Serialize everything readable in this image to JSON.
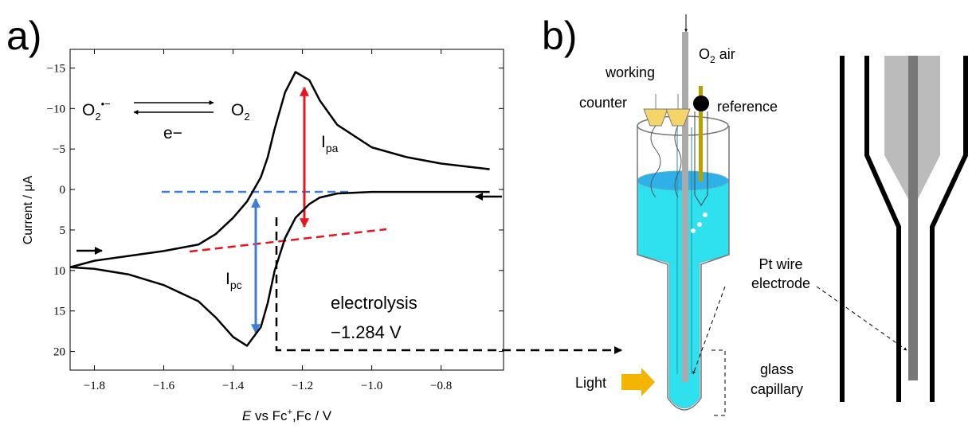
{
  "chart_data": {
    "type": "line",
    "y_title": "Current / μA",
    "x_title": [
      "E",
      " vs Fc",
      "+",
      ",Fc / V"
    ],
    "x": [
      -1.87,
      -1.8,
      -1.7,
      -1.6,
      -1.5,
      -1.45,
      -1.4,
      -1.36,
      -1.32,
      -1.3,
      -1.28,
      -1.25,
      -1.22,
      -1.18,
      -1.15,
      -1.1,
      -1.0,
      -0.9,
      -0.8,
      -0.66
    ],
    "series": [
      {
        "color": "#000000",
        "values": [
          9.6,
          9.8,
          10.5,
          11.8,
          13.8,
          15.8,
          18.2,
          19.3,
          17,
          14,
          10,
          6,
          3.5,
          1.8,
          1,
          0.5,
          0.3,
          0.3,
          0.3,
          0.3
        ]
      },
      {
        "color": "#000000",
        "values": [
          9.6,
          8.8,
          8.2,
          7.6,
          6.8,
          5.5,
          3.5,
          1.5,
          -1.5,
          -4,
          -7.5,
          -12,
          -14.5,
          -13.5,
          -11,
          -8,
          -5.2,
          -4,
          -3.2,
          -2.5
        ]
      }
    ],
    "xlim": [
      -1.87,
      -0.62
    ],
    "ylim": [
      -17.3,
      22.3
    ],
    "y_inverted": true,
    "xticks": [
      {
        "value": -1.8,
        "label": "−1.8"
      },
      {
        "value": -1.6,
        "label": "−1.6"
      },
      {
        "value": -1.4,
        "label": "−1.4"
      },
      {
        "value": -1.2,
        "label": "−1.2"
      },
      {
        "value": -1.0,
        "label": "−1.0"
      },
      {
        "value": -0.8,
        "label": "−0.8"
      }
    ],
    "yticks": [
      {
        "value": -15,
        "label": "−15"
      },
      {
        "value": -10,
        "label": "−10"
      },
      {
        "value": -5,
        "label": "−5"
      },
      0,
      5,
      10,
      15,
      20
    ],
    "annotations": {
      "reaction": {
        "left": [
          "O",
          "2",
          "•−"
        ],
        "below": "e−",
        "right": [
          "O",
          "2"
        ]
      },
      "ipa": [
        "I",
        "pa"
      ],
      "ipc": [
        "I",
        "pc"
      ],
      "electrolysis": "electrolysis",
      "potential": "−1.284 V"
    }
  },
  "panel_labels": [
    "a)",
    "b)"
  ],
  "diagram": {
    "gas": [
      "O",
      "2",
      " air"
    ],
    "working": "working",
    "counter": "counter",
    "reference": "reference",
    "wire": [
      "Pt wire",
      "electrode"
    ],
    "capillary": [
      "glass",
      "capillary"
    ],
    "light": "Light"
  }
}
